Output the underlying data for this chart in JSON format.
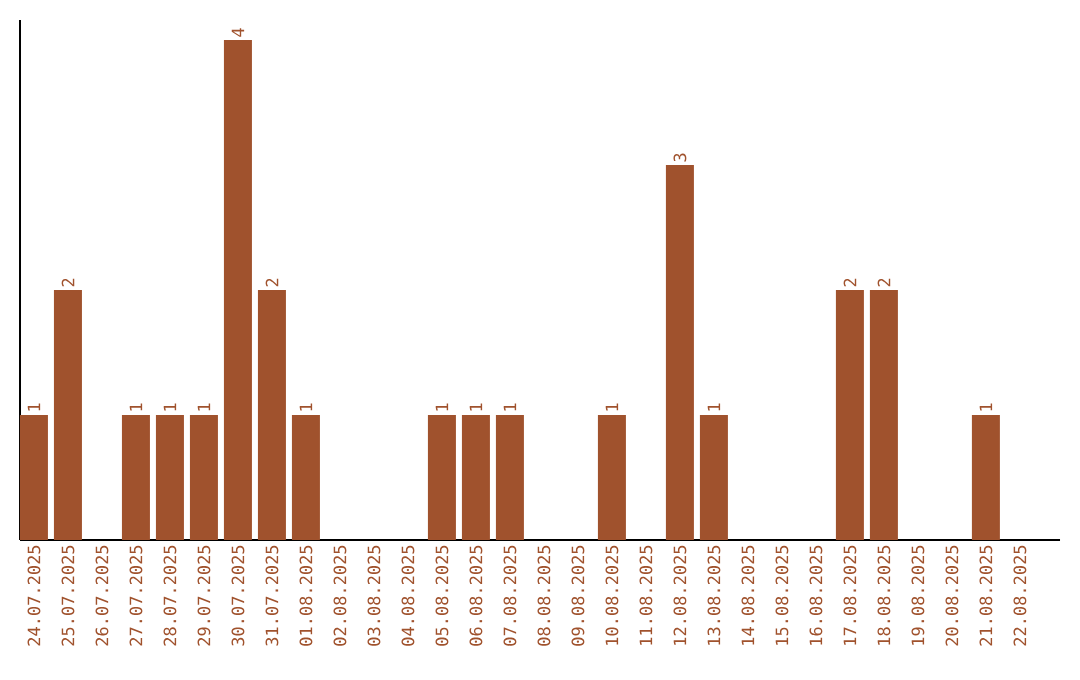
{
  "chart_data": {
    "type": "bar",
    "categories": [
      "24.07.2025",
      "25.07.2025",
      "26.07.2025",
      "27.07.2025",
      "28.07.2025",
      "29.07.2025",
      "30.07.2025",
      "31.07.2025",
      "01.08.2025",
      "02.08.2025",
      "03.08.2025",
      "04.08.2025",
      "05.08.2025",
      "06.08.2025",
      "07.08.2025",
      "08.08.2025",
      "09.08.2025",
      "10.08.2025",
      "11.08.2025",
      "12.08.2025",
      "13.08.2025",
      "14.08.2025",
      "15.08.2025",
      "16.08.2025",
      "17.08.2025",
      "18.08.2025",
      "19.08.2025",
      "20.08.2025",
      "21.08.2025",
      "22.08.2025"
    ],
    "values": [
      1,
      2,
      0,
      1,
      1,
      1,
      4,
      2,
      1,
      0,
      0,
      0,
      1,
      1,
      1,
      0,
      0,
      1,
      0,
      3,
      1,
      0,
      0,
      0,
      2,
      2,
      0,
      0,
      1,
      0
    ],
    "value_labels": [
      "1",
      "2",
      null,
      "1",
      "1",
      "1",
      "4",
      "2",
      "1",
      null,
      null,
      null,
      "1",
      "1",
      "1",
      null,
      null,
      "1",
      null,
      "3",
      "1",
      null,
      null,
      null,
      "2",
      "2",
      null,
      null,
      "1",
      null
    ],
    "color": "#a0522d"
  }
}
